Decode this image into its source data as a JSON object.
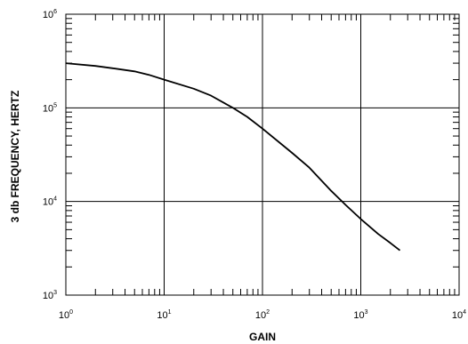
{
  "chart_data": {
    "type": "line",
    "title": "",
    "xlabel": "GAIN",
    "ylabel": "3 db FREQUENCY, HERTZ",
    "x_scale": "log",
    "y_scale": "log",
    "xlim": [
      1,
      10000
    ],
    "ylim": [
      1000,
      1000000
    ],
    "grid": true,
    "x_ticks": [
      {
        "base": "10",
        "exp": "0"
      },
      {
        "base": "10",
        "exp": "1"
      },
      {
        "base": "10",
        "exp": "2"
      },
      {
        "base": "10",
        "exp": "3"
      },
      {
        "base": "10",
        "exp": "4"
      }
    ],
    "y_ticks": [
      {
        "base": "10",
        "exp": "3"
      },
      {
        "base": "10",
        "exp": "4"
      },
      {
        "base": "10",
        "exp": "5"
      },
      {
        "base": "10",
        "exp": "6"
      }
    ],
    "series": [
      {
        "x": [
          1,
          2,
          3,
          5,
          7,
          10,
          20,
          30,
          50,
          70,
          100,
          200,
          300,
          500,
          700,
          1000,
          1500,
          2000,
          2500
        ],
        "y": [
          300000,
          280000,
          265000,
          245000,
          225000,
          200000,
          160000,
          135000,
          100000,
          80000,
          60000,
          33000,
          23000,
          13000,
          9200,
          6500,
          4500,
          3600,
          3000
        ]
      }
    ]
  }
}
